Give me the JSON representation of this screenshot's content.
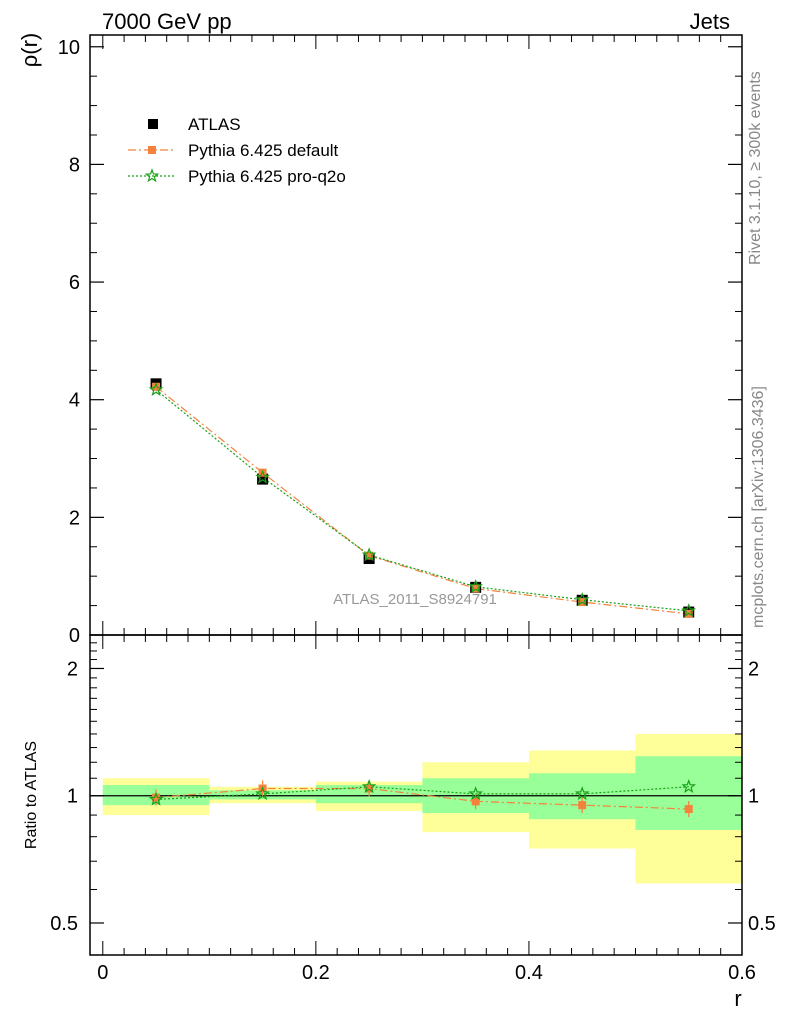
{
  "header": {
    "left": "7000 GeV pp",
    "right": "Jets"
  },
  "side_labels": {
    "rivet": "Rivet 3.1.10, ≥ 300k events",
    "mcplots": "mcplots.cern.ch [arXiv:1306.3436]"
  },
  "watermark": "ATLAS_2011_S8924791",
  "colors": {
    "atlas": "#000000",
    "default": "#f4823c",
    "proq2o": "#18a018",
    "band_inner": "#99ff99",
    "band_outer": "#ffff99"
  },
  "legend": {
    "atlas": "ATLAS",
    "default": "Pythia 6.425 default",
    "proq2o": "Pythia 6.425 pro-q2o"
  },
  "chart_data": [
    {
      "type": "scatter",
      "panel": "main",
      "ylabel": "ρ(r)",
      "xlabel": "r",
      "xlim": [
        -0.012,
        0.6
      ],
      "ylim": [
        0,
        10.2
      ],
      "yticks": [
        0,
        2,
        4,
        6,
        8,
        10
      ],
      "ytick_labels": [
        "0",
        "2",
        "4",
        "6",
        "8",
        "10"
      ],
      "legend_position": "top-left",
      "x": [
        0.05,
        0.15,
        0.25,
        0.35,
        0.45,
        0.55
      ],
      "x_bins": [
        [
          0,
          0.1
        ],
        [
          0.1,
          0.2
        ],
        [
          0.2,
          0.3
        ],
        [
          0.3,
          0.4
        ],
        [
          0.4,
          0.5
        ],
        [
          0.5,
          0.6
        ]
      ],
      "series": [
        {
          "name": "ATLAS",
          "values": [
            4.27,
            2.65,
            1.3,
            0.81,
            0.59,
            0.39
          ]
        },
        {
          "name": "Pythia 6.425 default",
          "values": [
            4.22,
            2.76,
            1.35,
            0.79,
            0.56,
            0.36
          ]
        },
        {
          "name": "Pythia 6.425 pro-q2o",
          "values": [
            4.17,
            2.68,
            1.36,
            0.82,
            0.6,
            0.41
          ]
        }
      ]
    },
    {
      "type": "line",
      "panel": "ratio",
      "ylabel": "Ratio to ATLAS",
      "xlabel": "r",
      "xlim": [
        -0.012,
        0.6
      ],
      "ylim": [
        0.42,
        2.4
      ],
      "log_y": true,
      "xticks": [
        0,
        0.2,
        0.4,
        0.6
      ],
      "xtick_labels": [
        "0",
        "0.2",
        "0.4",
        "0.6"
      ],
      "yticks": [
        0.5,
        1,
        2
      ],
      "ytick_labels": [
        "0.5",
        "1",
        "2"
      ],
      "x": [
        0.05,
        0.15,
        0.25,
        0.35,
        0.45,
        0.55
      ],
      "band_inner": [
        [
          0.95,
          1.06
        ],
        [
          0.98,
          1.03
        ],
        [
          0.96,
          1.06
        ],
        [
          0.91,
          1.1
        ],
        [
          0.88,
          1.13
        ],
        [
          0.83,
          1.24
        ]
      ],
      "band_outer": [
        [
          0.9,
          1.1
        ],
        [
          0.96,
          1.05
        ],
        [
          0.92,
          1.08
        ],
        [
          0.82,
          1.2
        ],
        [
          0.75,
          1.28
        ],
        [
          0.62,
          1.4
        ]
      ],
      "series": [
        {
          "name": "Pythia 6.425 default",
          "values": [
            0.99,
            1.04,
            1.04,
            0.97,
            0.95,
            0.93
          ]
        },
        {
          "name": "Pythia 6.425 pro-q2o",
          "values": [
            0.98,
            1.01,
            1.05,
            1.01,
            1.01,
            1.05
          ]
        }
      ]
    }
  ]
}
